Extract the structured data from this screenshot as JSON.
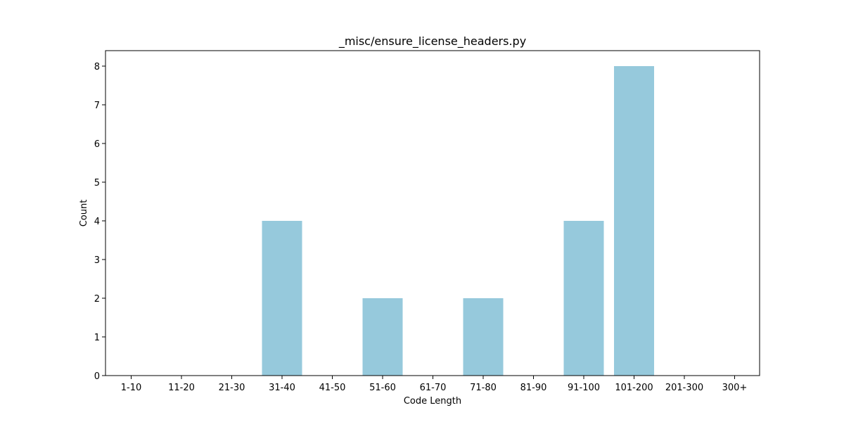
{
  "chart_data": {
    "type": "bar",
    "title": "_misc/ensure_license_headers.py",
    "xlabel": "Code Length",
    "ylabel": "Count",
    "categories": [
      "1-10",
      "11-20",
      "21-30",
      "31-40",
      "41-50",
      "51-60",
      "61-70",
      "71-80",
      "81-90",
      "91-100",
      "101-200",
      "201-300",
      "300+"
    ],
    "values": [
      0,
      0,
      0,
      4,
      0,
      2,
      0,
      2,
      0,
      4,
      8,
      0,
      0
    ],
    "ylim": [
      0,
      8.4
    ],
    "yticks": [
      0,
      1,
      2,
      3,
      4,
      5,
      6,
      7,
      8
    ],
    "grid": false,
    "bar_color": "#96c9dc"
  }
}
